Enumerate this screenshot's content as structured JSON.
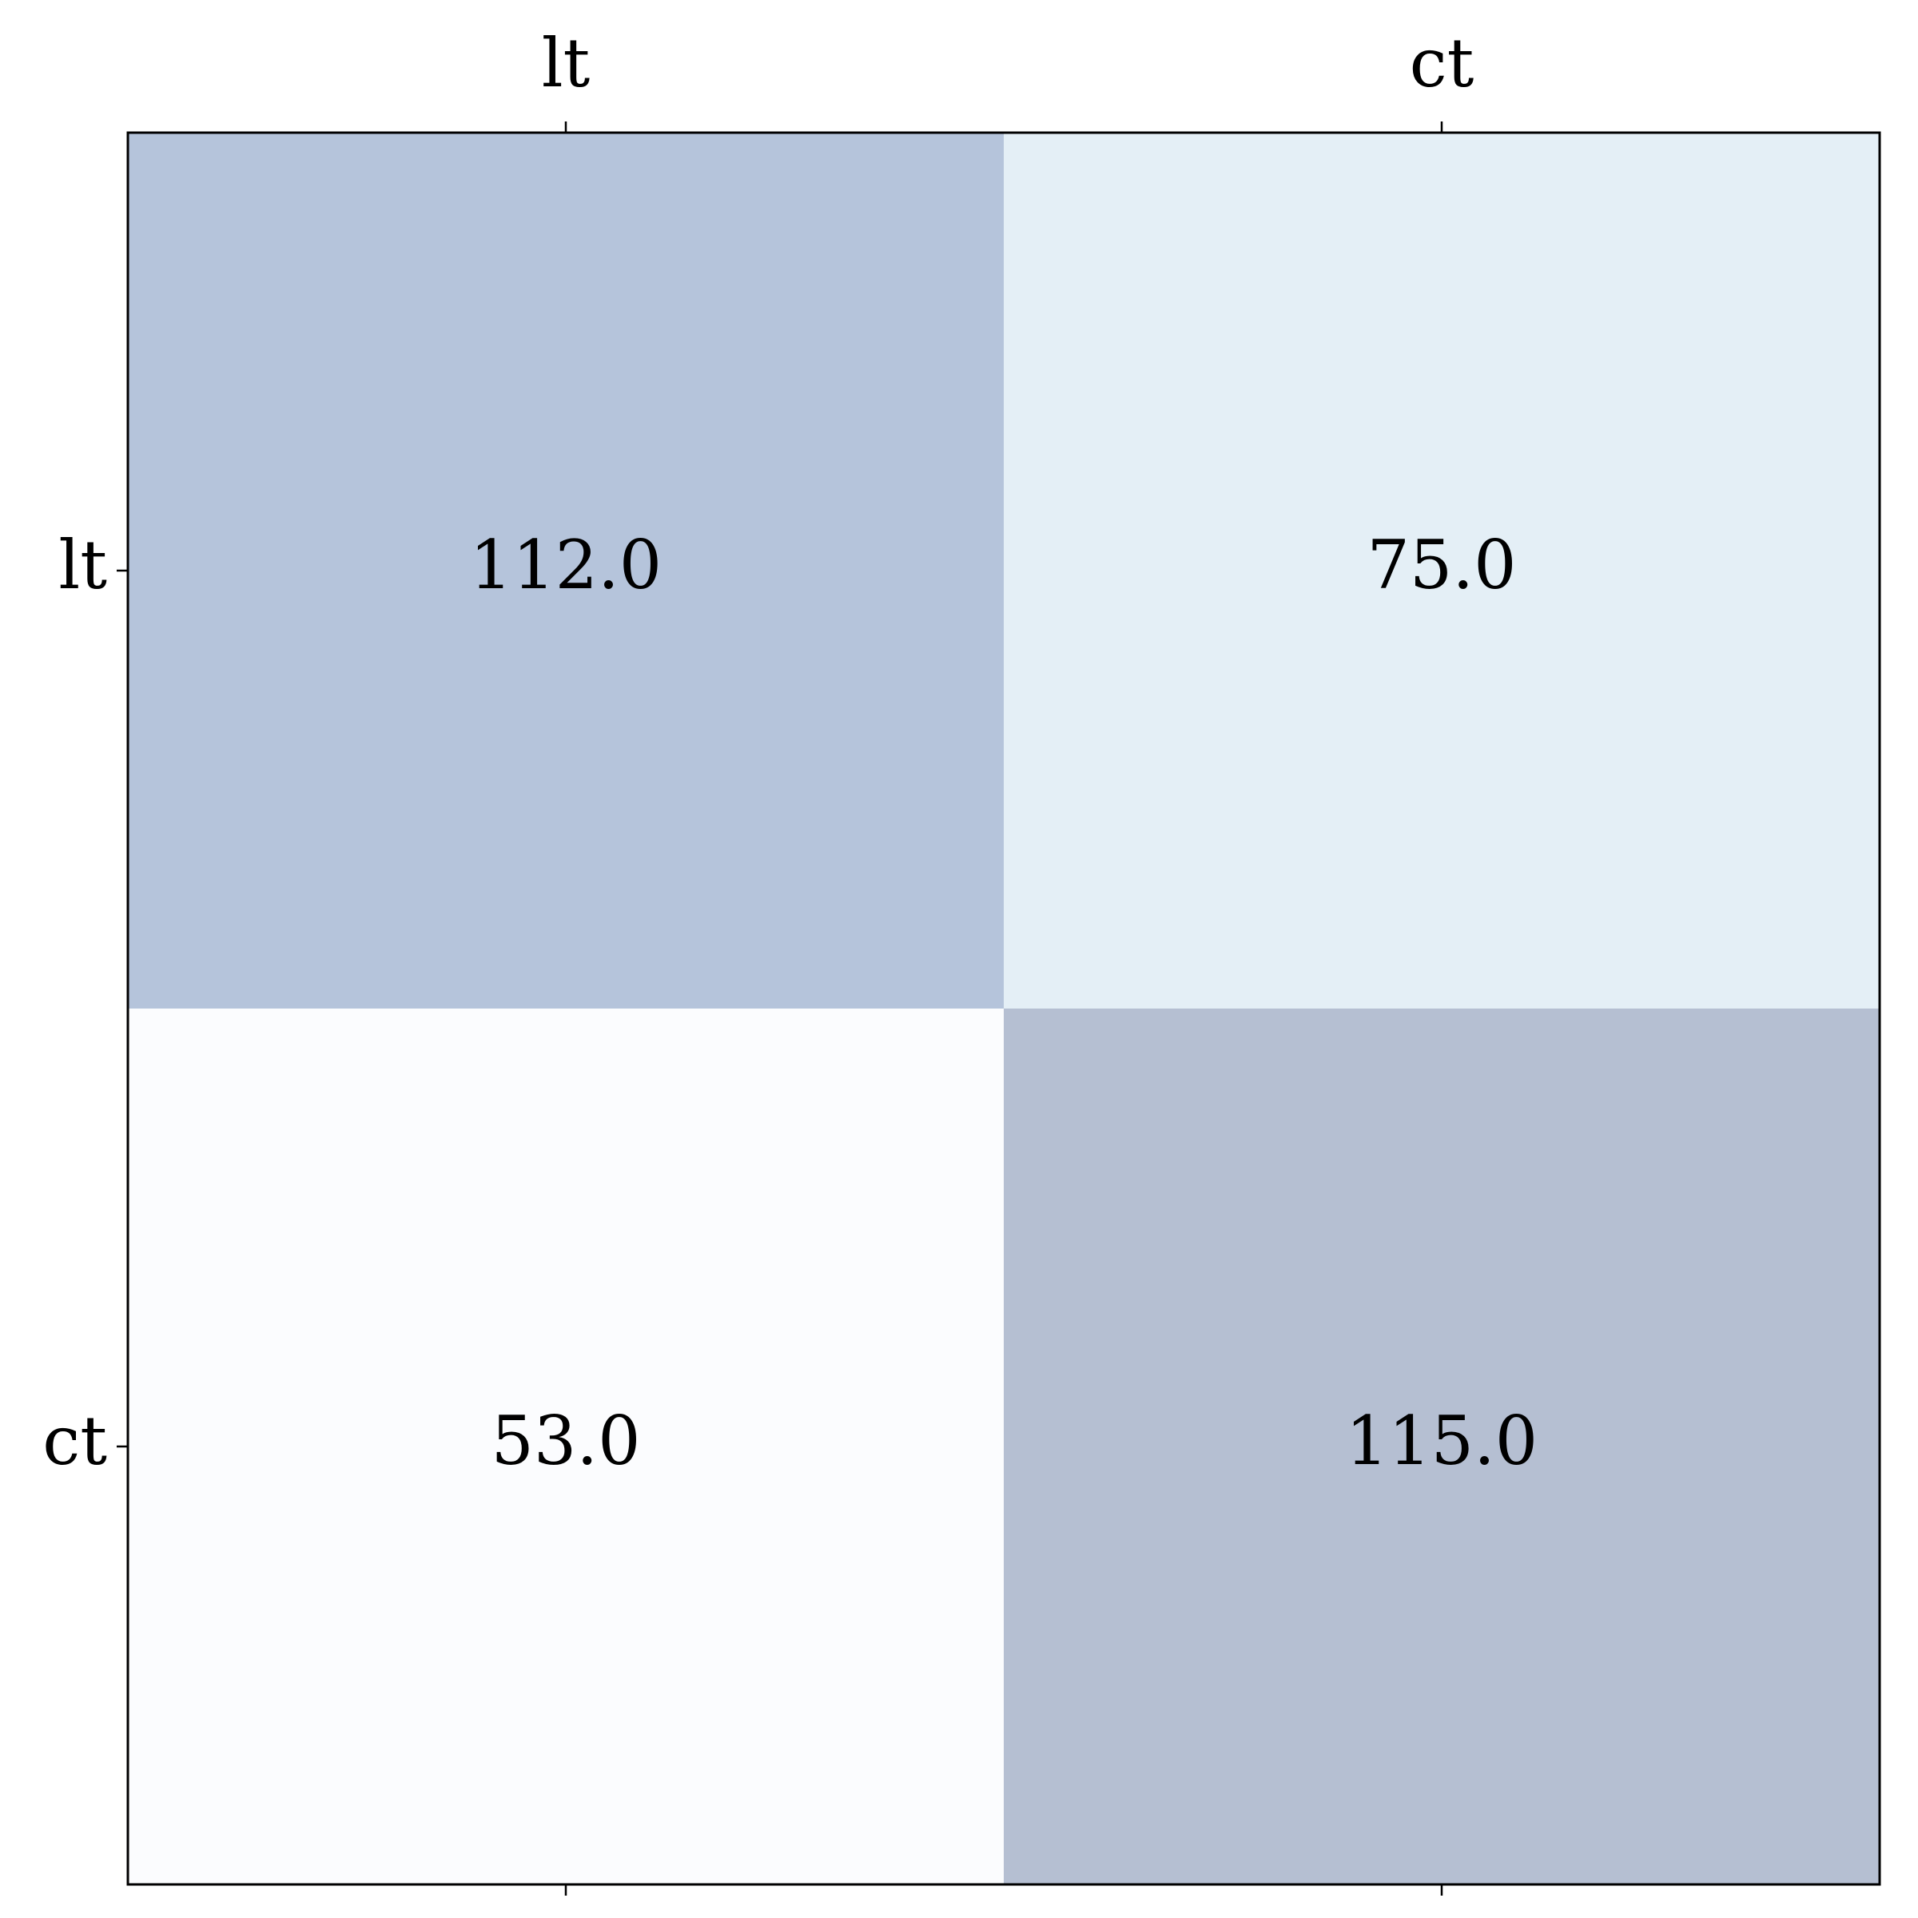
{
  "chart_data": {
    "type": "heatmap",
    "x_categories": [
      "lt",
      "ct"
    ],
    "y_categories": [
      "lt",
      "ct"
    ],
    "values": [
      [
        112.0,
        75.0
      ],
      [
        53.0,
        115.0
      ]
    ],
    "value_labels": [
      [
        "112.0",
        "75.0"
      ],
      [
        "53.0",
        "115.0"
      ]
    ],
    "x_axis_position": "top",
    "grid": false,
    "colors": {
      "cells": [
        [
          "#b5c4db",
          "#e4eff6"
        ],
        [
          "#fbfcfe",
          "#b5bfd2"
        ]
      ],
      "frame": "#000000",
      "text": "#000000"
    }
  }
}
